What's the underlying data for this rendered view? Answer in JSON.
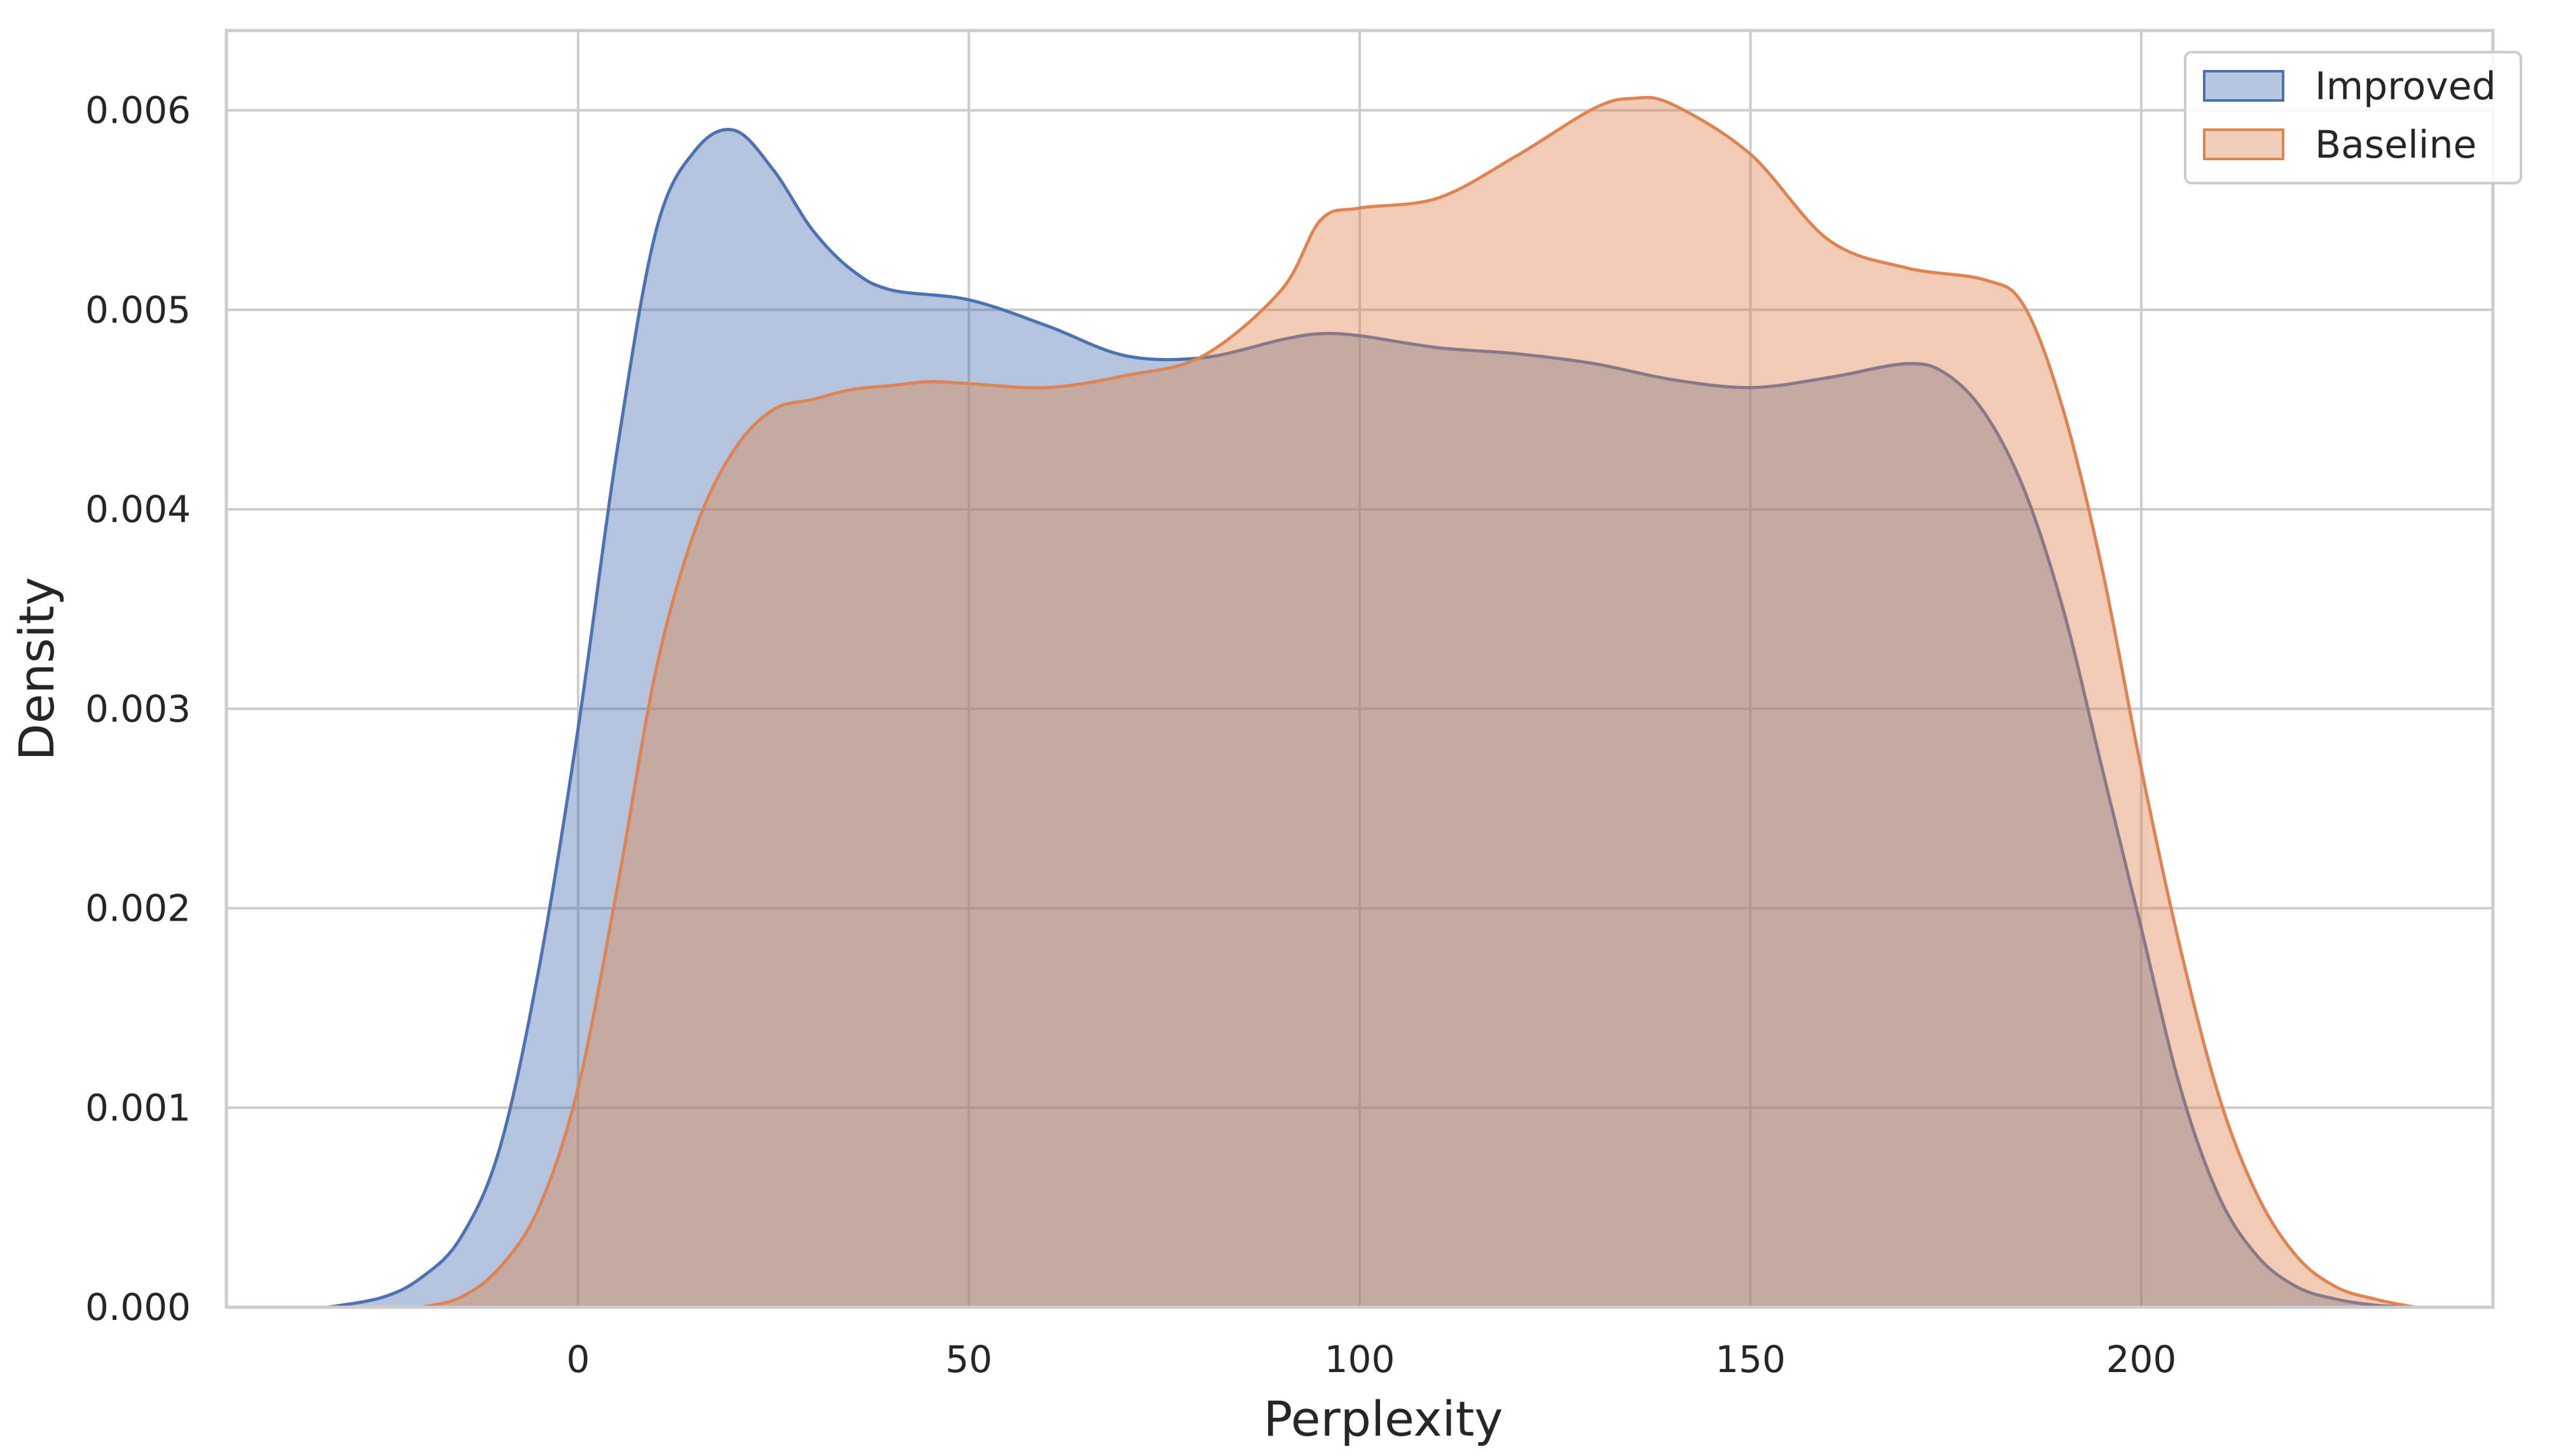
{
  "chart_data": {
    "type": "area",
    "title": "",
    "xlabel": "Perplexity",
    "ylabel": "Density",
    "xlim": [
      -45,
      245
    ],
    "ylim": [
      0,
      0.0064
    ],
    "xticks": [
      0,
      50,
      100,
      150,
      200
    ],
    "xtick_labels": [
      "0",
      "50",
      "100",
      "150",
      "200"
    ],
    "yticks": [
      0,
      0.001,
      0.002,
      0.003,
      0.004,
      0.005,
      0.006
    ],
    "ytick_labels": [
      "0.000",
      "0.001",
      "0.002",
      "0.003",
      "0.004",
      "0.005",
      "0.006"
    ],
    "grid": true,
    "legend_position": "top-right",
    "series": [
      {
        "name": "Improved",
        "color": "#4c72b0",
        "x": [
          -32,
          -25,
          -20,
          -15,
          -10,
          -5,
          0,
          5,
          10,
          15,
          20,
          25,
          30,
          35,
          40,
          50,
          60,
          70,
          80,
          90,
          95,
          100,
          110,
          120,
          130,
          140,
          150,
          160,
          170,
          175,
          180,
          185,
          190,
          195,
          200,
          205,
          210,
          215,
          220,
          225,
          230,
          235
        ],
        "y": [
          0.0,
          5e-05,
          0.00015,
          0.00035,
          0.0008,
          0.0017,
          0.0029,
          0.0043,
          0.0054,
          0.0058,
          0.0059,
          0.0057,
          0.0054,
          0.0052,
          0.0051,
          0.00505,
          0.00492,
          0.00477,
          0.00476,
          0.00485,
          0.00488,
          0.00487,
          0.00481,
          0.00478,
          0.00473,
          0.00465,
          0.00461,
          0.00466,
          0.00473,
          0.00468,
          0.00448,
          0.0041,
          0.0035,
          0.0027,
          0.0019,
          0.0011,
          0.00055,
          0.00025,
          0.0001,
          4e-05,
          1e-05,
          0.0
        ]
      },
      {
        "name": "Baseline",
        "color": "#dd8452",
        "x": [
          -20,
          -15,
          -10,
          -5,
          0,
          5,
          10,
          15,
          20,
          25,
          30,
          35,
          40,
          45,
          50,
          60,
          70,
          80,
          90,
          95,
          100,
          110,
          120,
          130,
          135,
          140,
          150,
          160,
          170,
          180,
          185,
          190,
          195,
          200,
          205,
          210,
          215,
          220,
          225,
          230,
          235
        ],
        "y": [
          0.0,
          5e-05,
          0.0002,
          0.0005,
          0.0011,
          0.0021,
          0.0032,
          0.0039,
          0.0043,
          0.0045,
          0.00455,
          0.0046,
          0.00462,
          0.00464,
          0.00463,
          0.00461,
          0.00467,
          0.00477,
          0.0051,
          0.00545,
          0.00551,
          0.00556,
          0.00577,
          0.00601,
          0.00606,
          0.00603,
          0.00578,
          0.00535,
          0.00521,
          0.00515,
          0.00502,
          0.0045,
          0.0037,
          0.0027,
          0.0018,
          0.00105,
          0.00055,
          0.00025,
          0.0001,
          4e-05,
          0.0
        ]
      }
    ]
  }
}
